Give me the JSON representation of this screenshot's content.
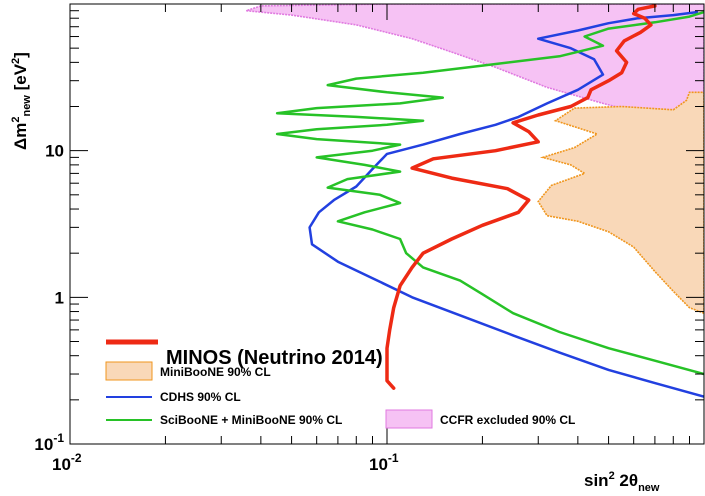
{
  "chart_data": {
    "type": "line",
    "title": "",
    "xlabel_main": "sin",
    "xlabel_sup": "2",
    "xlabel_theta": " 2θ",
    "xlabel_sub": "new",
    "ylabel_delta": "Δm",
    "ylabel_sup": "2",
    "ylabel_sub": "new",
    "ylabel_unit": " [eV",
    "ylabel_unit_sup": "2",
    "ylabel_unit_end": "]",
    "xscale": "log",
    "yscale": "log",
    "xlim": [
      0.01,
      1.0
    ],
    "ylim": [
      0.1,
      100
    ],
    "x_ticks": [
      {
        "value": 0.01,
        "label": "10",
        "sup": "-2"
      },
      {
        "value": 0.1,
        "label": "10",
        "sup": "-1"
      }
    ],
    "y_ticks": [
      {
        "value": 0.1,
        "label": "10",
        "sup": "-1"
      },
      {
        "value": 1,
        "label": "1"
      },
      {
        "value": 10,
        "label": "10"
      }
    ],
    "legend_title": "MINOS (Neutrino 2014)",
    "series": [
      {
        "name": "CCFR excluded 90% CL",
        "kind": "filled",
        "color": "#e07ae0",
        "fill": "#f6c2f4",
        "points": [
          [
            0.036,
            90
          ],
          [
            0.05,
            84
          ],
          [
            0.08,
            72
          ],
          [
            0.12,
            58
          ],
          [
            0.16,
            47
          ],
          [
            0.22,
            37
          ],
          [
            0.32,
            27
          ],
          [
            0.48,
            21
          ],
          [
            0.7,
            17
          ],
          [
            1.0,
            17
          ],
          [
            1.0,
            100
          ],
          [
            0.8,
            100
          ],
          [
            0.4,
            100
          ],
          [
            0.1,
            100
          ],
          [
            0.04,
            97
          ],
          [
            0.036,
            90
          ]
        ]
      },
      {
        "name": "MiniBooNE 90% CL",
        "kind": "filled",
        "color": "#f0961e",
        "fill": "#f9d8b8",
        "points": [
          [
            1.0,
            0.78
          ],
          [
            0.9,
            0.85
          ],
          [
            0.8,
            1.1
          ],
          [
            0.7,
            1.5
          ],
          [
            0.6,
            2.2
          ],
          [
            0.5,
            2.8
          ],
          [
            0.4,
            3.3
          ],
          [
            0.32,
            3.6
          ],
          [
            0.3,
            4.5
          ],
          [
            0.33,
            5.8
          ],
          [
            0.42,
            7.0
          ],
          [
            0.38,
            8.0
          ],
          [
            0.31,
            9.0
          ],
          [
            0.39,
            10.5
          ],
          [
            0.46,
            13.0
          ],
          [
            0.34,
            16.0
          ],
          [
            0.39,
            19.5
          ],
          [
            0.55,
            20.0
          ],
          [
            0.8,
            19.0
          ],
          [
            0.88,
            22.0
          ],
          [
            0.9,
            25.0
          ],
          [
            1.0,
            25.0
          ]
        ]
      },
      {
        "name": "CDHS 90% CL",
        "kind": "line",
        "color": "#2240e0",
        "points": [
          [
            1.0,
            0.21
          ],
          [
            0.7,
            0.26
          ],
          [
            0.5,
            0.32
          ],
          [
            0.35,
            0.42
          ],
          [
            0.25,
            0.55
          ],
          [
            0.18,
            0.72
          ],
          [
            0.12,
            1.0
          ],
          [
            0.09,
            1.35
          ],
          [
            0.07,
            1.75
          ],
          [
            0.058,
            2.3
          ],
          [
            0.057,
            3.0
          ],
          [
            0.061,
            3.8
          ],
          [
            0.068,
            4.6
          ],
          [
            0.08,
            5.7
          ],
          [
            0.09,
            7.5
          ],
          [
            0.1,
            9.5
          ],
          [
            0.13,
            11.0
          ],
          [
            0.17,
            13.0
          ],
          [
            0.22,
            15.0
          ],
          [
            0.26,
            17.0
          ],
          [
            0.32,
            21.0
          ],
          [
            0.4,
            26.0
          ],
          [
            0.48,
            33.0
          ],
          [
            0.45,
            42.0
          ],
          [
            0.38,
            50.0
          ],
          [
            0.3,
            58.0
          ],
          [
            0.4,
            66.0
          ],
          [
            0.5,
            74.0
          ],
          [
            0.62,
            80.0
          ],
          [
            0.8,
            84.0
          ],
          [
            0.95,
            88.0
          ]
        ]
      },
      {
        "name": "SciBooNE + MiniBooNE 90% CL",
        "kind": "line",
        "color": "#27c227",
        "points": [
          [
            1.0,
            0.3
          ],
          [
            0.7,
            0.37
          ],
          [
            0.5,
            0.45
          ],
          [
            0.35,
            0.58
          ],
          [
            0.25,
            0.78
          ],
          [
            0.2,
            1.05
          ],
          [
            0.17,
            1.3
          ],
          [
            0.13,
            1.6
          ],
          [
            0.115,
            2.0
          ],
          [
            0.11,
            2.5
          ],
          [
            0.09,
            2.9
          ],
          [
            0.07,
            3.3
          ],
          [
            0.085,
            3.8
          ],
          [
            0.11,
            4.4
          ],
          [
            0.095,
            5.0
          ],
          [
            0.065,
            5.6
          ],
          [
            0.075,
            6.4
          ],
          [
            0.11,
            7.2
          ],
          [
            0.085,
            8.0
          ],
          [
            0.06,
            9.0
          ],
          [
            0.09,
            10.0
          ],
          [
            0.11,
            11.0
          ],
          [
            0.06,
            12.0
          ],
          [
            0.045,
            13.0
          ],
          [
            0.06,
            14.0
          ],
          [
            0.1,
            15.0
          ],
          [
            0.13,
            16.0
          ],
          [
            0.08,
            17.0
          ],
          [
            0.045,
            18.0
          ],
          [
            0.06,
            19.5
          ],
          [
            0.11,
            21.0
          ],
          [
            0.15,
            23.0
          ],
          [
            0.1,
            25.0
          ],
          [
            0.065,
            28.0
          ],
          [
            0.08,
            31.0
          ],
          [
            0.13,
            34.0
          ],
          [
            0.2,
            38.0
          ],
          [
            0.35,
            44.0
          ],
          [
            0.48,
            52.0
          ],
          [
            0.42,
            60.0
          ],
          [
            0.5,
            68.0
          ],
          [
            0.7,
            75.0
          ],
          [
            0.9,
            82.0
          ],
          [
            1.0,
            88.0
          ]
        ]
      },
      {
        "name": "MINOS (Neutrino 2014)",
        "kind": "line",
        "color": "#ee2a14",
        "points": [
          [
            0.105,
            0.24
          ],
          [
            0.1,
            0.27
          ],
          [
            0.1,
            0.35
          ],
          [
            0.1,
            0.45
          ],
          [
            0.102,
            0.6
          ],
          [
            0.105,
            0.85
          ],
          [
            0.11,
            1.2
          ],
          [
            0.12,
            1.6
          ],
          [
            0.13,
            2.0
          ],
          [
            0.16,
            2.5
          ],
          [
            0.2,
            3.1
          ],
          [
            0.26,
            3.8
          ],
          [
            0.28,
            4.6
          ],
          [
            0.24,
            5.5
          ],
          [
            0.16,
            6.5
          ],
          [
            0.12,
            7.6
          ],
          [
            0.14,
            8.8
          ],
          [
            0.22,
            10.0
          ],
          [
            0.3,
            11.5
          ],
          [
            0.28,
            13.5
          ],
          [
            0.25,
            15.5
          ],
          [
            0.3,
            17.5
          ],
          [
            0.38,
            20.0
          ],
          [
            0.43,
            23.0
          ],
          [
            0.44,
            26.0
          ],
          [
            0.5,
            30.0
          ],
          [
            0.55,
            34.0
          ],
          [
            0.57,
            40.0
          ],
          [
            0.53,
            48.0
          ],
          [
            0.56,
            56.0
          ],
          [
            0.63,
            64.0
          ],
          [
            0.68,
            72.0
          ],
          [
            0.65,
            80.0
          ],
          [
            0.6,
            86.0
          ],
          [
            0.62,
            92.0
          ],
          [
            0.7,
            97.0
          ]
        ]
      }
    ]
  }
}
